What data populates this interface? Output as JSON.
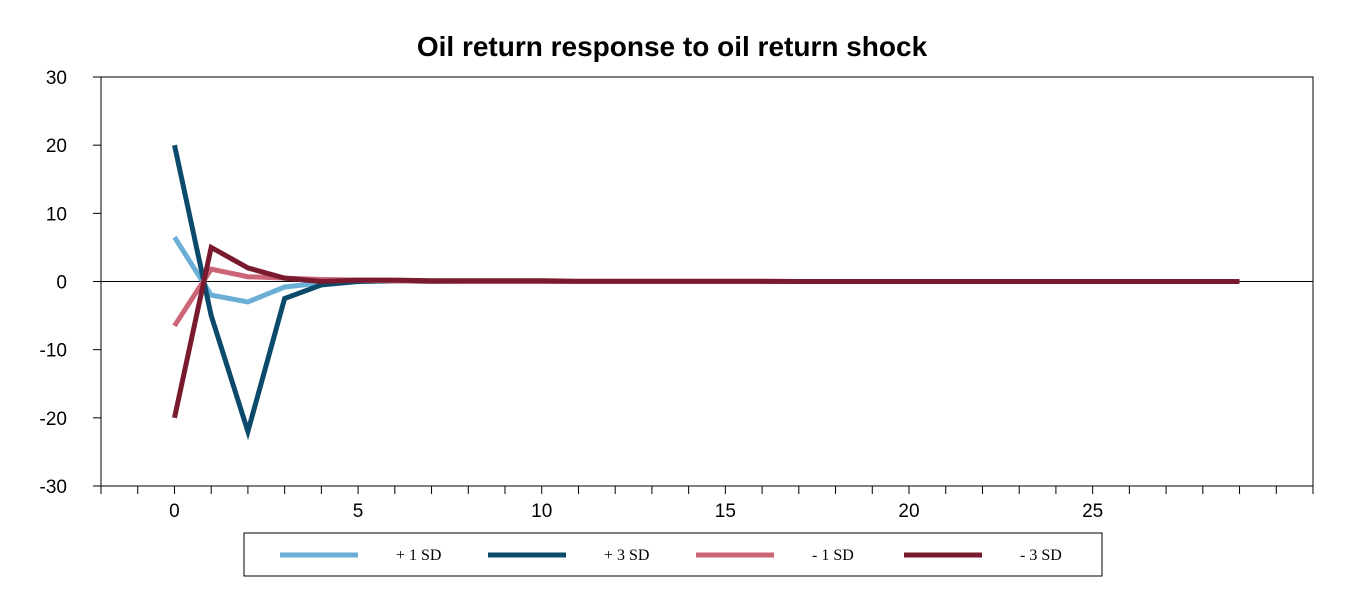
{
  "chart_data": {
    "type": "line",
    "title": "Oil return response to oil return shock",
    "xlabel": "",
    "ylabel": "",
    "xlim": [
      -2,
      31
    ],
    "ylim": [
      -30,
      30
    ],
    "x_ticks": [
      0,
      5,
      10,
      15,
      20,
      25
    ],
    "y_ticks": [
      30,
      20,
      10,
      0,
      -10,
      -20,
      -30
    ],
    "grid": false,
    "legend_position": "bottom",
    "x": [
      0,
      1,
      2,
      3,
      4,
      5,
      6,
      7,
      8,
      9,
      10,
      11,
      12,
      13,
      14,
      15,
      16,
      17,
      18,
      19,
      20,
      21,
      22,
      23,
      24,
      25,
      26,
      27,
      28,
      29
    ],
    "series": [
      {
        "name": "+ 1 SD",
        "color": "#6baed6",
        "values": [
          6.5,
          -2,
          -3,
          -0.8,
          -0.2,
          0.1,
          0.1,
          0.05,
          0,
          0,
          0,
          0,
          0,
          0,
          0,
          0,
          0,
          0,
          0,
          0,
          0,
          0,
          0,
          0,
          0,
          0,
          0,
          0,
          0,
          0
        ]
      },
      {
        "name": "+ 3 SD",
        "color": "#0b4a6b",
        "values": [
          20,
          -5,
          -22,
          -2.5,
          -0.5,
          0,
          0.1,
          0,
          0,
          0,
          0,
          0,
          0,
          0,
          0,
          0,
          0,
          0,
          0,
          0,
          0,
          0,
          0,
          0,
          0,
          0,
          0,
          0,
          0,
          0
        ]
      },
      {
        "name": "- 1 SD",
        "color": "#cc6677",
        "values": [
          -6.5,
          1.8,
          0.7,
          0.5,
          0.3,
          0.2,
          0.1,
          0.05,
          0,
          0,
          0,
          0,
          0,
          0,
          0,
          0,
          0,
          0,
          0,
          0,
          0,
          0,
          0,
          0,
          0,
          0,
          0,
          0,
          0,
          0
        ]
      },
      {
        "name": "- 3 SD",
        "color": "#7a1a2e",
        "values": [
          -20,
          5,
          2,
          0.5,
          0,
          0.2,
          0.2,
          0.1,
          0.1,
          0.1,
          0.1,
          0.05,
          0.05,
          0.05,
          0.05,
          0.05,
          0.05,
          0,
          0,
          0,
          0,
          0,
          0,
          0,
          0,
          0,
          0,
          0,
          0,
          0
        ]
      }
    ]
  }
}
